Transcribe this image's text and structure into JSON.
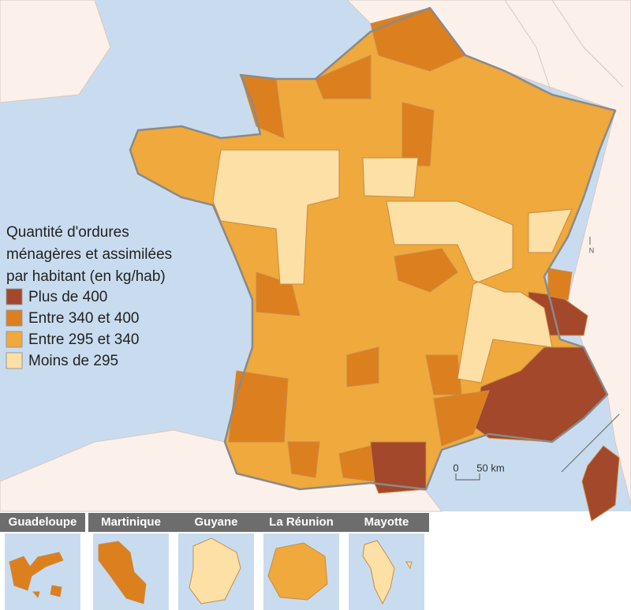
{
  "map": {
    "legend": {
      "title": [
        "Quantité d'ordures",
        "ménagères et assimilées",
        "par habitant (en kg/hab)"
      ],
      "items": [
        {
          "label": "Plus de 400",
          "color": "#a3482a"
        },
        {
          "label": "Entre 340 et 400",
          "color": "#dc7f1f"
        },
        {
          "label": "Entre 295 et 340",
          "color": "#efa93c"
        },
        {
          "label": "Moins de 295",
          "color": "#fce0a6"
        }
      ]
    },
    "scale": [
      "0",
      "50 km"
    ],
    "north": "N",
    "insets": [
      {
        "label": "Guadeloupe",
        "category": 1
      },
      {
        "label": "Martinique",
        "category": 1
      },
      {
        "label": "Guyane",
        "category": 3
      },
      {
        "label": "La Réunion",
        "category": 2
      },
      {
        "label": "Mayotte",
        "category": 3
      }
    ]
  }
}
